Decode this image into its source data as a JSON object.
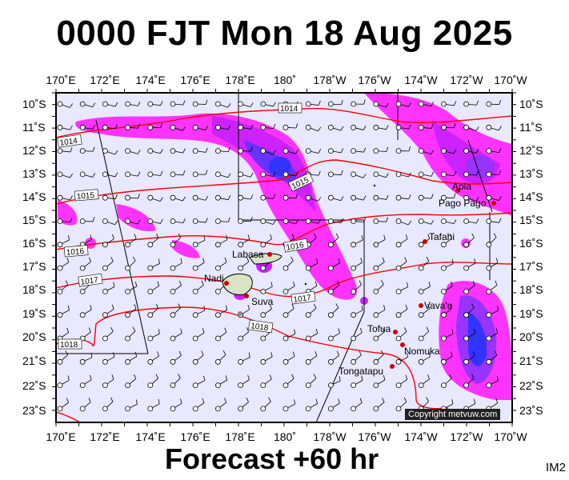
{
  "title": "0000 FJT Mon 18 Aug 2025",
  "subtitle": "Forecast +60 hr",
  "corner_code": "IM2",
  "copyright": "Copyright metvuw.com",
  "lon_labels": [
    "170˚E",
    "172˚E",
    "174˚E",
    "176˚E",
    "178˚E",
    "180˚",
    "178˚W",
    "176˚W",
    "174˚W",
    "172˚W",
    "170˚W"
  ],
  "lat_labels": [
    "10˚S",
    "11˚S",
    "12˚S",
    "13˚S",
    "14˚S",
    "15˚S",
    "16˚S",
    "17˚S",
    "18˚S",
    "19˚S",
    "20˚S",
    "21˚S",
    "22˚S",
    "23˚S"
  ],
  "isobar_labels": [
    "1014",
    "1014",
    "1015",
    "1015",
    "1016",
    "1016",
    "1017",
    "1017",
    "1018",
    "1018"
  ],
  "places": [
    "Apia",
    "Pago Pago",
    "Tafahi",
    "Labasa",
    "Nadi",
    "Suva",
    "Vava'u",
    "Tofua",
    "Nomuka",
    "Tongatapu"
  ],
  "colors": {
    "background": "#e8e8ff",
    "rain_light": "#ff33ff",
    "rain_mid": "#cc22ff",
    "rain_heavy": "#3333ff",
    "isobar": "#ff0000",
    "town": "#cc0000"
  }
}
